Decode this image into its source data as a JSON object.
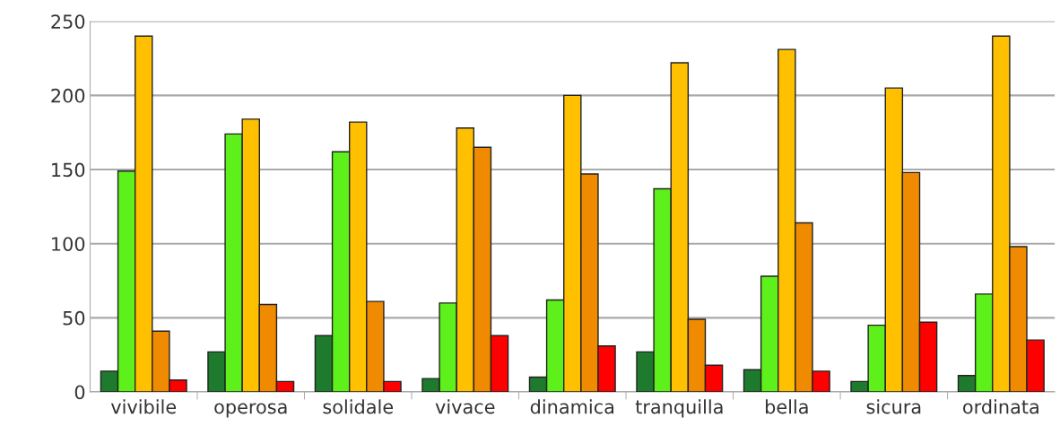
{
  "chart_data": {
    "type": "bar",
    "categories": [
      "vivibile",
      "operosa",
      "solidale",
      "vivace",
      "dinamica",
      "tranquilla",
      "bella",
      "sicura",
      "ordinata"
    ],
    "series": [
      {
        "color": "#1e7b2e",
        "values": [
          14,
          27,
          38,
          9,
          10,
          27,
          15,
          7,
          11
        ]
      },
      {
        "color": "#5ef01a",
        "values": [
          149,
          174,
          162,
          60,
          62,
          137,
          78,
          45,
          66
        ]
      },
      {
        "color": "#ffc000",
        "values": [
          240,
          184,
          182,
          178,
          200,
          222,
          231,
          205,
          240
        ]
      },
      {
        "color": "#f08a00",
        "values": [
          41,
          59,
          61,
          165,
          147,
          49,
          114,
          148,
          98
        ]
      },
      {
        "color": "#ff0000",
        "values": [
          8,
          7,
          7,
          38,
          31,
          18,
          14,
          47,
          35
        ]
      }
    ],
    "ylim": [
      0,
      250
    ],
    "yticks": [
      0,
      50,
      100,
      150,
      200,
      250
    ],
    "grid": "y"
  }
}
